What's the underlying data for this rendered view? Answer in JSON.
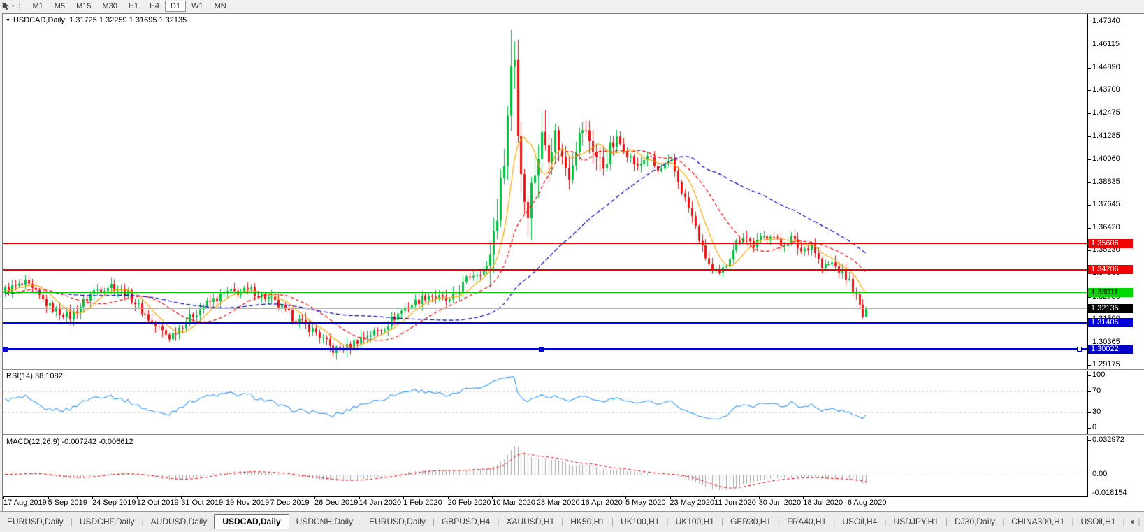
{
  "toolbar": {
    "timeframes": [
      "M1",
      "M5",
      "M15",
      "M30",
      "H1",
      "H4",
      "D1",
      "W1",
      "MN"
    ],
    "active_timeframe": "D1"
  },
  "chart": {
    "symbol": "USDCAD,Daily",
    "ohlc_text": "1.31725 1.32259 1.31695 1.32135",
    "last_ohlc": [
      1.31725,
      1.32259,
      1.31695,
      1.32135
    ],
    "price_scale": [
      "1.47340",
      "1.46115",
      "1.44890",
      "1.43700",
      "1.42475",
      "1.41285",
      "1.40060",
      "1.38835",
      "1.37645",
      "1.36420",
      "1.35230",
      "1.34005",
      "1.32780",
      "1.31590",
      "1.30365",
      "1.29175"
    ],
    "badges": [
      {
        "label": "1.35606",
        "price": 1.35606,
        "bg": "#f00000",
        "fg": "#ffffff"
      },
      {
        "label": "1.34206",
        "price": 1.34206,
        "bg": "#f00000",
        "fg": "#ffffff"
      },
      {
        "label": "1.33011",
        "price": 1.33011,
        "bg": "#00d800",
        "fg": "#000000"
      },
      {
        "label": "1.32135",
        "price": 1.32135,
        "bg": "#000000",
        "fg": "#ffffff"
      },
      {
        "label": "1.31405",
        "price": 1.31405,
        "bg": "#0000dd",
        "fg": "#ffffff"
      },
      {
        "label": "1.30022",
        "price": 1.30022,
        "bg": "#0000c8",
        "fg": "#ffffff"
      }
    ],
    "hlines": [
      {
        "name": "resistance-1",
        "price": 1.35606,
        "color": "#f00000",
        "width": 2
      },
      {
        "name": "resistance-2",
        "price": 1.34206,
        "color": "#f00000",
        "width": 2
      },
      {
        "name": "support-green",
        "price": 1.33011,
        "color": "#00cc00",
        "width": 2
      },
      {
        "name": "current-price",
        "price": 1.32135,
        "color": "#b4b4b4",
        "width": 1
      },
      {
        "name": "support-blue-1",
        "price": 1.31405,
        "color": "#0000ff",
        "width": 2
      },
      {
        "name": "support-blue-2",
        "price": 1.30022,
        "color": "#0000c8",
        "width": 3,
        "handles": true
      }
    ],
    "dates": [
      "17 Aug 2019",
      "5 Sep 2019",
      "24 Sep 2019",
      "12 Oct 2019",
      "31 Oct 2019",
      "19 Nov 2019",
      "7 Dec 2019",
      "26 Dec 2019",
      "14 Jan 2020",
      "1 Feb 2020",
      "20 Feb 2020",
      "10 Mar 2020",
      "28 Mar 2020",
      "16 Apr 2020",
      "5 May 2020",
      "23 May 2020",
      "11 Jun 2020",
      "30 Jun 2020",
      "18 Jul 2020",
      "6 Aug 2020"
    ],
    "bars": 253,
    "bars_per_label": 13,
    "colors": {
      "bull": "#00c13c",
      "bear": "#ee1111",
      "ma_fast": "#ffa500",
      "ma_mid": "#ff0000",
      "ma_slow": "#0000cd"
    },
    "anchors": [
      [
        -60,
        1.326
      ],
      [
        -30,
        1.331
      ],
      [
        -10,
        1.329
      ],
      [
        0,
        1.3315
      ],
      [
        6,
        1.3345
      ],
      [
        13,
        1.3225
      ],
      [
        19,
        1.317
      ],
      [
        26,
        1.331
      ],
      [
        31,
        1.334
      ],
      [
        36,
        1.329
      ],
      [
        43,
        1.314
      ],
      [
        48,
        1.3065
      ],
      [
        53,
        1.315
      ],
      [
        58,
        1.323
      ],
      [
        65,
        1.33
      ],
      [
        72,
        1.331
      ],
      [
        78,
        1.326
      ],
      [
        84,
        1.317
      ],
      [
        91,
        1.309
      ],
      [
        96,
        1.2995
      ],
      [
        100,
        1.301
      ],
      [
        104,
        1.306
      ],
      [
        110,
        1.3105
      ],
      [
        117,
        1.322
      ],
      [
        124,
        1.329
      ],
      [
        130,
        1.325
      ],
      [
        136,
        1.339
      ],
      [
        141,
        1.343
      ],
      [
        143,
        1.362
      ],
      [
        145,
        1.385
      ],
      [
        147,
        1.423
      ],
      [
        148,
        1.45
      ],
      [
        149,
        1.456
      ],
      [
        150,
        1.415
      ],
      [
        151,
        1.395
      ],
      [
        152,
        1.38
      ],
      [
        153,
        1.376
      ],
      [
        155,
        1.395
      ],
      [
        157,
        1.412
      ],
      [
        159,
        1.406
      ],
      [
        161,
        1.414
      ],
      [
        163,
        1.401
      ],
      [
        165,
        1.393
      ],
      [
        167,
        1.408
      ],
      [
        169,
        1.417
      ],
      [
        171,
        1.411
      ],
      [
        173,
        1.402
      ],
      [
        175,
        1.397
      ],
      [
        177,
        1.406
      ],
      [
        179,
        1.411
      ],
      [
        182,
        1.404
      ],
      [
        185,
        1.396
      ],
      [
        188,
        1.403
      ],
      [
        191,
        1.394
      ],
      [
        195,
        1.399
      ],
      [
        198,
        1.384
      ],
      [
        201,
        1.37
      ],
      [
        204,
        1.353
      ],
      [
        207,
        1.341
      ],
      [
        209,
        1.339
      ],
      [
        211,
        1.345
      ],
      [
        213,
        1.354
      ],
      [
        216,
        1.3605
      ],
      [
        219,
        1.355
      ],
      [
        221,
        1.358
      ],
      [
        224,
        1.3615
      ],
      [
        227,
        1.355
      ],
      [
        230,
        1.359
      ],
      [
        233,
        1.352
      ],
      [
        236,
        1.356
      ],
      [
        239,
        1.343
      ],
      [
        242,
        1.3455
      ],
      [
        245,
        1.34
      ],
      [
        247,
        1.336
      ],
      [
        249,
        1.328
      ],
      [
        251,
        1.31725
      ],
      [
        252,
        1.32135
      ]
    ],
    "peak_high": 1.469
  },
  "rsi": {
    "label": "RSI(14) 38.1082",
    "period": 14,
    "current": 38.1082,
    "scale": [
      "100",
      "70",
      "30",
      "0"
    ],
    "level_values": [
      100,
      70,
      30,
      0
    ],
    "line_color": "#3399ff"
  },
  "macd": {
    "label": "MACD(12,26,9) -0.007242 -0.006612",
    "params": [
      12,
      26,
      9
    ],
    "values": [
      -0.007242,
      -0.006612
    ],
    "scale": [
      "0.032972",
      "0.00",
      "-0.018154"
    ],
    "scale_values": [
      0.032972,
      0,
      -0.018154
    ],
    "hist_color": "#a8a8a8",
    "signal_color": "#ff0000"
  },
  "tabs": {
    "items": [
      "EURUSD,Daily",
      "USDCHF,Daily",
      "AUDUSD,Daily",
      "USDCAD,Daily",
      "USDCNH,Daily",
      "EURUSD,Daily",
      "GBPUSD,H4",
      "XAUUSD,H1",
      "HK50,H1",
      "UK100,H1",
      "UK100,H1",
      "GER30,H1",
      "FRA40,H1",
      "USOil,H4",
      "USDJPY,H1",
      "DJ30,Daily",
      "CHINA300,H1",
      "USOil,H1"
    ],
    "active_index": 3
  }
}
